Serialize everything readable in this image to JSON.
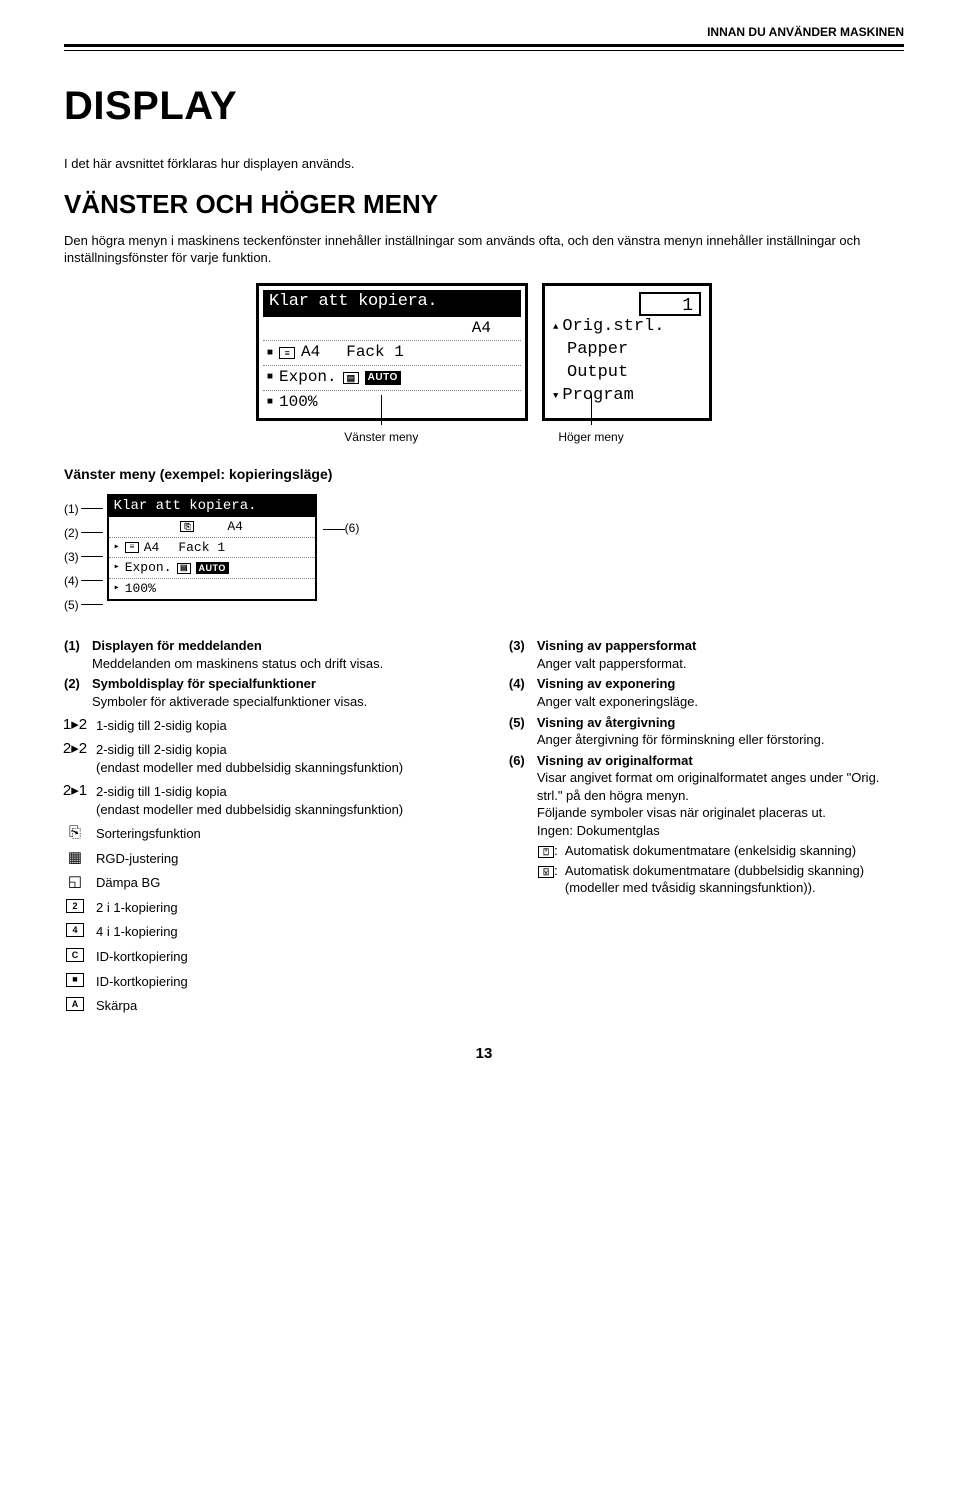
{
  "header": {
    "right_text": "INNAN DU ANVÄNDER MASKINEN"
  },
  "title": "DISPLAY",
  "intro": "I det här avsnittet förklaras hur displayen används.",
  "section_heading": "VÄNSTER OCH HÖGER MENY",
  "section_body": "Den högra menyn i maskinens teckenfönster innehåller inställningar som används ofta, och den vänstra menyn innehåller inställningar och inställningsfönster för varje funktion.",
  "lcd_left": {
    "title": "Klar att kopiera.",
    "line1_right": "A4",
    "line2_icon": "≡",
    "line2_a": "A4",
    "line2_b": "Fack 1",
    "line3_a": "Expon.",
    "line3_auto": "AUTO",
    "line4": "100%"
  },
  "lcd_right": {
    "count": "1",
    "l1": "Orig.strl.",
    "l2": "Papper",
    "l3": "Output",
    "l4": "Program"
  },
  "menu_labels": {
    "left": "Vänster meny",
    "right": "Höger meny"
  },
  "sub_heading": "Vänster meny (exempel: kopieringsläge)",
  "annot": {
    "n1": "(1)",
    "n2": "(2)",
    "n3": "(3)",
    "n4": "(4)",
    "n5": "(5)",
    "n6": "(6)",
    "title": "Klar att kopiera.",
    "l2": "A4",
    "l3a": "A4",
    "l3b": "Fack 1",
    "l4a": "Expon.",
    "l5": "100%"
  },
  "left_defs": [
    {
      "num": "(1)",
      "label": "Displayen för meddelanden",
      "desc": "Meddelanden om maskinens status och drift visas."
    },
    {
      "num": "(2)",
      "label": "Symboldisplay för specialfunktioner",
      "desc": "Symboler för aktiverade specialfunktioner visas."
    }
  ],
  "icon_items": [
    {
      "glyph": "1▸2",
      "desc": "1-sidig till 2-sidig kopia"
    },
    {
      "glyph": "2▸2",
      "desc": "2-sidig till 2-sidig kopia\n(endast modeller med dubbelsidig skanningsfunktion)"
    },
    {
      "glyph": "2▸1",
      "desc": "2-sidig till 1-sidig kopia\n(endast modeller med dubbelsidig skanningsfunktion)"
    },
    {
      "glyph": "⎘",
      "desc": "Sorteringsfunktion"
    },
    {
      "glyph": "▦",
      "desc": "RGD-justering"
    },
    {
      "glyph": "◱",
      "desc": "Dämpa BG"
    },
    {
      "glyph": "2",
      "box": true,
      "desc": "2 i 1-kopiering"
    },
    {
      "glyph": "4",
      "box": true,
      "desc": "4 i 1-kopiering"
    },
    {
      "glyph": "C",
      "box": true,
      "desc": "ID-kortkopiering"
    },
    {
      "glyph": "■",
      "box": true,
      "desc": "ID-kortkopiering"
    },
    {
      "glyph": "A",
      "box": true,
      "desc": "Skärpa"
    }
  ],
  "right_defs": [
    {
      "num": "(3)",
      "label": "Visning av pappersformat",
      "desc": "Anger valt pappersformat."
    },
    {
      "num": "(4)",
      "label": "Visning av exponering",
      "desc": "Anger valt exponeringsläge."
    },
    {
      "num": "(5)",
      "label": "Visning av återgivning",
      "desc": "Anger återgivning för förminskning eller förstoring."
    },
    {
      "num": "(6)",
      "label": "Visning av originalformat",
      "desc": "Visar angivet format om originalformatet anges under \"Orig. strl.\" på den högra menyn.\nFöljande symboler visas när originalet placeras ut.\nIngen: Dokumentglas"
    }
  ],
  "right_tail": [
    {
      "icon": "⍞",
      "text": "Automatisk dokumentmatare (enkelsidig skanning)"
    },
    {
      "icon": "⍌",
      "text": "Automatisk dokumentmatare (dubbelsidig skanning)\n(modeller med tvåsidig skanningsfunktion))."
    }
  ],
  "page_number": "13"
}
